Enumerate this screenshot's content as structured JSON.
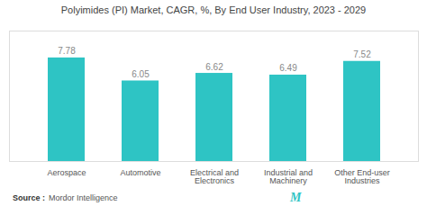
{
  "chart_data": {
    "type": "bar",
    "title": "Polyimides (PI) Market, CAGR, %, By End User Industry, 2023 - 2029",
    "categories": [
      "Aerospace",
      "Automotive",
      "Electrical and\nElectronics",
      "Industrial and\nMachinery",
      "Other End-user\nIndustries"
    ],
    "values": [
      7.78,
      6.05,
      6.62,
      6.49,
      7.52
    ],
    "color": "#2EC4C4",
    "ylim": [
      0,
      9.8
    ],
    "data_labels": true,
    "tick_labels": "x",
    "annotations": [
      "Source :",
      "Mordor Intelligence",
      "Μ"
    ]
  }
}
